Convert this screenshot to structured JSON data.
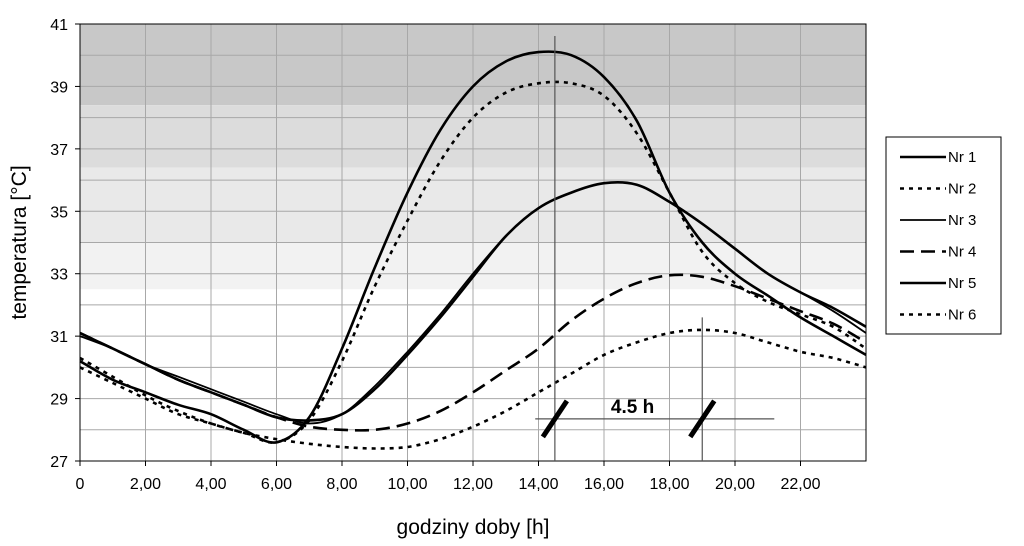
{
  "chart_data": {
    "type": "line",
    "xlabel": "godziny doby [h]",
    "ylabel": "temperatura [°C]",
    "xlim": [
      0,
      24
    ],
    "ylim": [
      27,
      41
    ],
    "x_ticks": [
      "0",
      "2,00",
      "4,00",
      "6,00",
      "8,00",
      "10,00",
      "12,00",
      "14,00",
      "16,00",
      "18,00",
      "20,00",
      "22,00"
    ],
    "y_ticks": [
      "27",
      "29",
      "31",
      "33",
      "35",
      "37",
      "39",
      "41"
    ],
    "grid": true,
    "legend_position": "right",
    "x": [
      0,
      1,
      2,
      3,
      4,
      5,
      6,
      7,
      8,
      9,
      10,
      11,
      12,
      13,
      14,
      15,
      16,
      17,
      18,
      19,
      20,
      21,
      22,
      23,
      24
    ],
    "series": [
      {
        "name": "Nr 1",
        "style": "solid-thick",
        "values": [
          31.1,
          30.6,
          30.1,
          29.6,
          29.2,
          28.8,
          28.4,
          28.3,
          28.5,
          29.3,
          30.4,
          31.6,
          32.9,
          34.2,
          35.1,
          35.6,
          35.9,
          35.85,
          35.3,
          34.6,
          33.8,
          33.0,
          32.4,
          31.9,
          31.3
        ]
      },
      {
        "name": "Nr 2",
        "style": "dotted",
        "values": [
          30.3,
          29.7,
          29.1,
          28.6,
          28.2,
          27.9,
          27.6,
          28.3,
          30.2,
          32.6,
          34.7,
          36.6,
          38.0,
          38.8,
          39.1,
          39.1,
          38.7,
          37.5,
          35.6,
          33.7,
          32.7,
          32.1,
          31.7,
          31.3,
          30.6
        ]
      },
      {
        "name": "Nr 3",
        "style": "solid-thin",
        "values": [
          31.0,
          30.6,
          30.1,
          29.7,
          29.3,
          28.9,
          28.5,
          28.2,
          28.5,
          29.4,
          30.5,
          31.7,
          33.0,
          34.2,
          35.1,
          35.6,
          35.9,
          35.85,
          35.3,
          34.6,
          33.8,
          33.0,
          32.4,
          31.8,
          31.1
        ]
      },
      {
        "name": "Nr 4",
        "style": "dashed",
        "values": [
          31.1,
          30.6,
          30.1,
          29.6,
          29.2,
          28.8,
          28.4,
          28.1,
          28.0,
          28.0,
          28.2,
          28.6,
          29.2,
          29.9,
          30.6,
          31.5,
          32.2,
          32.7,
          32.95,
          32.9,
          32.6,
          32.2,
          31.8,
          31.4,
          30.8
        ]
      },
      {
        "name": "Nr 5",
        "style": "solid-thick",
        "values": [
          30.2,
          29.6,
          29.2,
          28.8,
          28.5,
          28.0,
          27.6,
          28.4,
          30.6,
          33.2,
          35.6,
          37.6,
          39.0,
          39.8,
          40.1,
          40.0,
          39.3,
          37.9,
          35.6,
          34.0,
          33.0,
          32.3,
          31.6,
          31.0,
          30.4
        ]
      },
      {
        "name": "Nr 6",
        "style": "dotted",
        "values": [
          30.0,
          29.5,
          29.0,
          28.5,
          28.2,
          27.9,
          27.7,
          27.55,
          27.45,
          27.4,
          27.45,
          27.7,
          28.1,
          28.6,
          29.2,
          29.8,
          30.4,
          30.8,
          31.1,
          31.2,
          31.1,
          30.8,
          30.5,
          30.3,
          30.0
        ]
      }
    ],
    "annotation": {
      "text": "4.5 h",
      "from_x": 14.5,
      "to_x": 19.0
    },
    "plot_background_bands": [
      "#c8c8c8",
      "#dcdcdc",
      "#e9e9e9",
      "#f2f2f2",
      "#ffffff"
    ]
  }
}
